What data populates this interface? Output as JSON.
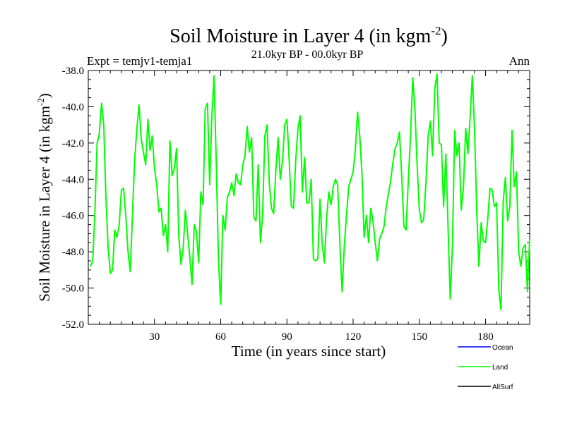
{
  "chart_data": {
    "type": "line",
    "title": "Soil Moisture in Layer 4 (in kgm",
    "title_sup": "-2",
    "title_close": ")",
    "subtitle_left": "Expt = temjv1-temja1",
    "subtitle_center": "21.0kyr BP - 00.0kyr BP",
    "subtitle_right": "Ann",
    "xlabel": "Time (in years since start)",
    "ylabel": "Soil Moisture in Layer 4 (in kgm",
    "ylabel_sup": "-2",
    "ylabel_close": ")",
    "xlim": [
      0,
      200
    ],
    "ylim": [
      -52,
      -38
    ],
    "xticks": [
      30,
      60,
      90,
      120,
      150,
      180
    ],
    "xtick_labels": [
      "30",
      "60",
      "90",
      "120",
      "150",
      "180"
    ],
    "yticks": [
      -38,
      -40,
      -42,
      -44,
      -46,
      -48,
      -50,
      -52
    ],
    "ytick_labels": [
      "-38.0",
      "-40.0",
      "-42.0",
      "-44.0",
      "-46.0",
      "-48.0",
      "-50.0",
      "-52.0"
    ],
    "legend": [
      {
        "name": "Ocean",
        "color": "#0000ff"
      },
      {
        "name": "Land",
        "color": "#00ff00"
      },
      {
        "name": "AllSurf",
        "color": "#000000"
      }
    ],
    "series": [
      {
        "name": "Land",
        "color": "#00ff00",
        "x": [
          1,
          2,
          3,
          4,
          5,
          6,
          7,
          8,
          9,
          10,
          11,
          12,
          13,
          14,
          15,
          16,
          17,
          18,
          19,
          20,
          21,
          22,
          23,
          24,
          25,
          26,
          27,
          28,
          29,
          30,
          31,
          32,
          33,
          34,
          35,
          36,
          37,
          38,
          39,
          40,
          41,
          42,
          43,
          44,
          45,
          46,
          47,
          48,
          49,
          50,
          51,
          52,
          53,
          54,
          55,
          56,
          57,
          58,
          59,
          60,
          61,
          62,
          63,
          64,
          65,
          66,
          67,
          68,
          69,
          70,
          71,
          72,
          73,
          74,
          75,
          76,
          77,
          78,
          79,
          80,
          81,
          82,
          83,
          84,
          85,
          86,
          87,
          88,
          89,
          90,
          91,
          92,
          93,
          94,
          95,
          96,
          97,
          98,
          99,
          100,
          101,
          102,
          103,
          104,
          105,
          106,
          107,
          108,
          109,
          110,
          111,
          112,
          113,
          114,
          115,
          116,
          117,
          118,
          119,
          120,
          121,
          122,
          123,
          124,
          125,
          126,
          127,
          128,
          129,
          130,
          131,
          132,
          133,
          134,
          135,
          136,
          137,
          138,
          139,
          140,
          141,
          142,
          143,
          144,
          145,
          146,
          147,
          148,
          149,
          150,
          151,
          152,
          153,
          154,
          155,
          156,
          157,
          158,
          159,
          160,
          161,
          162,
          163,
          164,
          165,
          166,
          167,
          168,
          169,
          170,
          171,
          172,
          173,
          174,
          175,
          176,
          177,
          178,
          179,
          180,
          181,
          182,
          183,
          184,
          185,
          186,
          187,
          188,
          189,
          190,
          191,
          192,
          193,
          194,
          195,
          196,
          197,
          198,
          199,
          200
        ],
        "values": [
          -48.8,
          -48.5,
          -45.8,
          -42.0,
          -41.5,
          -39.8,
          -41.0,
          -45.0,
          -47.8,
          -49.2,
          -49.0,
          -46.8,
          -47.2,
          -46.5,
          -44.6,
          -44.5,
          -46.0,
          -48.0,
          -49.1,
          -46.0,
          -43.0,
          -41.2,
          -39.9,
          -41.8,
          -42.5,
          -43.2,
          -40.7,
          -42.4,
          -41.6,
          -43.4,
          -44.3,
          -45.8,
          -45.6,
          -47.1,
          -46.5,
          -48.0,
          -41.9,
          -43.8,
          -43.4,
          -42.3,
          -47.1,
          -48.7,
          -47.8,
          -45.7,
          -47.0,
          -48.3,
          -49.8,
          -46.5,
          -46.9,
          -48.6,
          -44.7,
          -45.4,
          -40.1,
          -39.8,
          -44.3,
          -40.5,
          -38.3,
          -43.2,
          -48.5,
          -50.9,
          -46.0,
          -46.8,
          -45.0,
          -44.7,
          -44.2,
          -44.9,
          -43.7,
          -44.2,
          -44.3,
          -43.2,
          -42.7,
          -41.1,
          -42.5,
          -41.7,
          -46.1,
          -46.3,
          -43.2,
          -47.5,
          -45.9,
          -41.6,
          -41.0,
          -44.2,
          -45.6,
          -45.9,
          -43.5,
          -41.7,
          -44.0,
          -43.0,
          -41.0,
          -40.7,
          -42.9,
          -45.5,
          -45.6,
          -42.9,
          -41.2,
          -40.5,
          -44.7,
          -42.8,
          -45.3,
          -45.3,
          -44.0,
          -48.4,
          -48.5,
          -48.4,
          -45.1,
          -47.6,
          -48.6,
          -46.1,
          -44.7,
          -45.4,
          -44.4,
          -44.0,
          -44.3,
          -47.5,
          -50.2,
          -47.7,
          -46.0,
          -44.4,
          -44.0,
          -43.6,
          -42.4,
          -40.3,
          -41.6,
          -43.7,
          -47.2,
          -46.0,
          -47.5,
          -45.6,
          -46.3,
          -47.5,
          -48.5,
          -47.3,
          -47.0,
          -46.6,
          -45.5,
          -44.8,
          -44.1,
          -43.1,
          -42.3,
          -42.0,
          -41.4,
          -43.8,
          -46.6,
          -46.8,
          -44.1,
          -41.6,
          -38.4,
          -40.1,
          -43.2,
          -45.7,
          -46.4,
          -46.2,
          -44.2,
          -41.6,
          -40.8,
          -42.7,
          -39.0,
          -38.2,
          -42.0,
          -42.1,
          -45.5,
          -42.6,
          -46.6,
          -50.6,
          -47.7,
          -41.3,
          -42.7,
          -42.0,
          -45.7,
          -44.4,
          -41.2,
          -42.6,
          -40.6,
          -38.3,
          -41.2,
          -45.7,
          -48.8,
          -46.4,
          -47.4,
          -47.5,
          -46.2,
          -44.5,
          -44.6,
          -45.5,
          -45.3,
          -50.1,
          -51.2,
          -45.2,
          -43.9,
          -46.3,
          -45.5,
          -41.3,
          -44.4,
          -43.6,
          -48.0,
          -48.8,
          -47.8,
          -47.6,
          -50.2,
          -47.3
        ]
      }
    ]
  }
}
